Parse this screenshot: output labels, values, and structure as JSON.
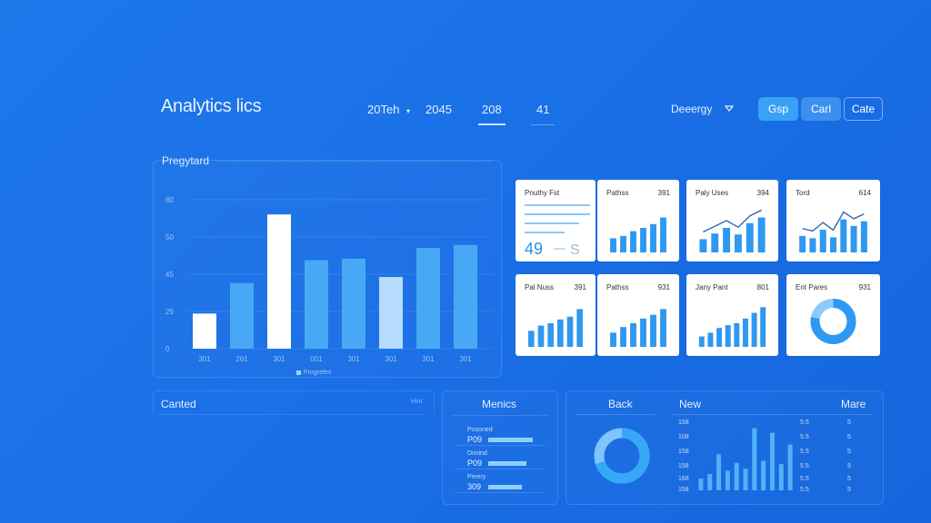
{
  "header": {
    "title": "Analytics lics",
    "tabs": [
      {
        "label": "20Teh"
      },
      {
        "label": "2045"
      },
      {
        "label": "208"
      },
      {
        "label": "41"
      }
    ],
    "select": {
      "label": "Deeergy"
    },
    "buttons": [
      "Gsp",
      "Carl",
      "Cate"
    ]
  },
  "main": {
    "label": "Pregytard",
    "legend": "Progrefes",
    "chart_data": {
      "type": "bar",
      "categories": [
        "301",
        "261",
        "301",
        "001",
        "301",
        "301",
        "301",
        "301"
      ],
      "values": [
        23,
        43,
        88,
        58,
        59,
        47,
        66,
        68
      ],
      "ytick_labels": [
        "0",
        "29",
        "45",
        "50",
        "80"
      ],
      "ylim": [
        0,
        100
      ],
      "colors": [
        "#ffffff",
        "#47a9f6",
        "#ffffff",
        "#47a9f6",
        "#47a9f6",
        "#b5dcfc",
        "#47a9f6",
        "#47a9f6"
      ]
    }
  },
  "cards": [
    {
      "title": "Pnuthy Fst",
      "value": "",
      "big": "49",
      "suffix": "S",
      "type": "lines"
    },
    {
      "title": "Pathss",
      "value": "391",
      "type": "bars",
      "values": [
        30,
        35,
        45,
        52,
        60,
        74
      ]
    },
    {
      "title": "Paly Uses",
      "value": "394",
      "type": "barline",
      "values": [
        28,
        40,
        52,
        38,
        62,
        74
      ]
    },
    {
      "title": "Tord",
      "value": "614",
      "type": "barline",
      "values": [
        35,
        30,
        48,
        32,
        70,
        56,
        66
      ]
    },
    {
      "title": "Pal Nuss",
      "value": "391",
      "type": "bars",
      "values": [
        34,
        45,
        50,
        58,
        64,
        80
      ]
    },
    {
      "title": "Pathss",
      "value": "931",
      "type": "bars",
      "values": [
        30,
        42,
        50,
        60,
        68,
        80
      ]
    },
    {
      "title": "Jany Pant",
      "value": "801",
      "type": "bars",
      "values": [
        22,
        30,
        40,
        46,
        50,
        60,
        72,
        84
      ]
    },
    {
      "title": "Ent Pares",
      "value": "931",
      "type": "donut",
      "percent": 78
    }
  ],
  "bottom": {
    "left_label": "Canted",
    "left_meta": "Hint",
    "metrics_title": "Menics",
    "metrics_rows": [
      {
        "label": "Pusoned",
        "value": "P09",
        "fill": 0.82
      },
      {
        "label": "Dovind",
        "value": "P09",
        "fill": 0.7
      },
      {
        "label": "Pmery",
        "value": "309",
        "fill": 0.62
      }
    ],
    "back_label": "Back",
    "new_label": "New",
    "mare_label": "Mare",
    "donut_percent": 70,
    "new_chart_data": {
      "type": "bar",
      "values": [
        18,
        25,
        55,
        30,
        42,
        33,
        95,
        45,
        88,
        40,
        70
      ],
      "ylim": [
        0,
        100
      ]
    },
    "left_ticks": [
      "158",
      "108",
      "158",
      "158",
      "168",
      "158"
    ],
    "right_ticks_a": [
      "5.5",
      "5.5",
      "5.5",
      "5.5",
      "5.5",
      "5.5"
    ],
    "right_ticks_b": [
      "5",
      "5",
      "5",
      "5",
      "5",
      "5"
    ]
  }
}
